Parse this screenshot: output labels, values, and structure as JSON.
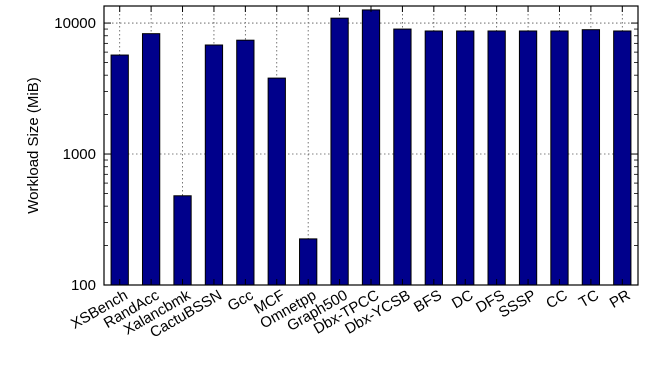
{
  "chart_data": {
    "type": "bar",
    "ylabel": "Workload Size (MiB)",
    "yscale": "log",
    "ylim": [
      100,
      13500
    ],
    "yticks": [
      100,
      1000,
      10000
    ],
    "ytick_labels": [
      "100",
      "1000",
      "10000"
    ],
    "grid": true,
    "bar_color": "#00008b",
    "categories": [
      "XSBench",
      "RandAcc",
      "Xalancbmk",
      "CactuBSSN",
      "Gcc",
      "MCF",
      "Omnetpp",
      "Graph500",
      "Dbx-TPCC",
      "Dbx-YCSB",
      "BFS",
      "DC",
      "DFS",
      "SSSP",
      "CC",
      "TC",
      "PR"
    ],
    "values": [
      5700,
      8300,
      480,
      6800,
      7400,
      3800,
      225,
      10900,
      12600,
      9000,
      8700,
      8700,
      8700,
      8700,
      8700,
      8900,
      8700
    ]
  }
}
